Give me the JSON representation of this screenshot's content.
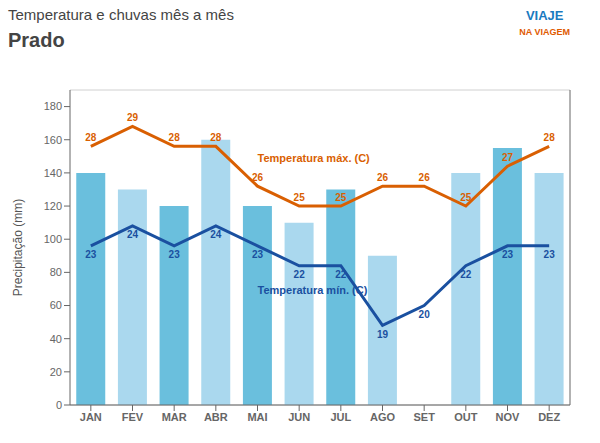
{
  "chart_data": {
    "type": "bar",
    "title": "Temperatura e chuvas mês a mês",
    "subtitle": "Prado",
    "categories": [
      "JAN",
      "FEV",
      "MAR",
      "ABR",
      "MAI",
      "JUN",
      "JUL",
      "AGO",
      "SET",
      "OUT",
      "NOV",
      "DEZ"
    ],
    "series": [
      {
        "type": "bar",
        "values": [
          140,
          130,
          120,
          160,
          120,
          110,
          130,
          90,
          0,
          140,
          155,
          140
        ],
        "colors": [
          "#6abfdd",
          "#aad8ee",
          "#6abfdd",
          "#aad8ee",
          "#6abfdd",
          "#aad8ee",
          "#6abfdd",
          "#aad8ee",
          "#6abfdd",
          "#aad8ee",
          "#6abfdd",
          "#aad8ee"
        ]
      },
      {
        "name": "Temperatura máx. (C)",
        "type": "line",
        "axis": "y2",
        "color": "#d95f02",
        "values": [
          28,
          29,
          28,
          28,
          26,
          25,
          25,
          26,
          26,
          25,
          27,
          28
        ],
        "data_labels": true
      },
      {
        "name": "Temperatura mín. (C)",
        "type": "line",
        "axis": "y2",
        "color": "#1a50a0",
        "values": [
          23,
          24,
          23,
          24,
          23,
          22,
          22,
          19,
          20,
          22,
          23,
          23
        ],
        "data_labels": true
      }
    ],
    "ylabel": "Precipitação (mm)",
    "ylim": [
      0,
      190
    ],
    "yticks": [
      0,
      20,
      40,
      60,
      80,
      100,
      120,
      140,
      160,
      180
    ],
    "y2lim": [
      15,
      30.833333333333332
    ],
    "grid": true,
    "annotations": [
      {
        "text": "VIAJE",
        "color": "#1a7abf"
      },
      {
        "text": "NA VIAGEM",
        "color": "#e05a00"
      }
    ]
  }
}
